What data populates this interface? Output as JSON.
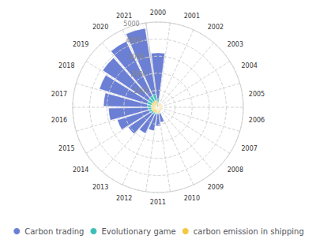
{
  "chart_data": {
    "type": "polar",
    "categories": [
      "2000",
      "2001",
      "2002",
      "2003",
      "2004",
      "2005",
      "2006",
      "2007",
      "2008",
      "2009",
      "2010",
      "2011",
      "2012",
      "2013",
      "2014",
      "2015",
      "2016",
      "2017",
      "2018",
      "2019",
      "2020",
      "2021"
    ],
    "series": [
      {
        "name": "Carbon trading",
        "color": "#6b7fd4",
        "values": [
          3200,
          0,
          0,
          0,
          0,
          0,
          0,
          0,
          0,
          0,
          900,
          1100,
          1400,
          1700,
          2100,
          2500,
          2900,
          3200,
          3600,
          3900,
          4300,
          4700
        ]
      },
      {
        "name": "Evolutionary game",
        "color": "#3dbfb8",
        "values": [
          500,
          0,
          0,
          0,
          0,
          0,
          0,
          0,
          0,
          0,
          350,
          380,
          420,
          460,
          500,
          540,
          580,
          620,
          660,
          700,
          740,
          780
        ]
      },
      {
        "name": "carbon emission in shipping",
        "color": "#f5c842",
        "values": [
          280,
          260,
          250,
          245,
          240,
          238,
          235,
          230,
          228,
          225,
          330,
          340,
          350,
          360,
          370,
          375,
          380,
          385,
          390,
          395,
          400,
          410
        ]
      }
    ],
    "ylim": [
      0,
      5000
    ],
    "yticks": [
      1000,
      2000,
      3000,
      4000,
      5000
    ],
    "grid": true,
    "stacked": false,
    "legend": "bottom"
  }
}
